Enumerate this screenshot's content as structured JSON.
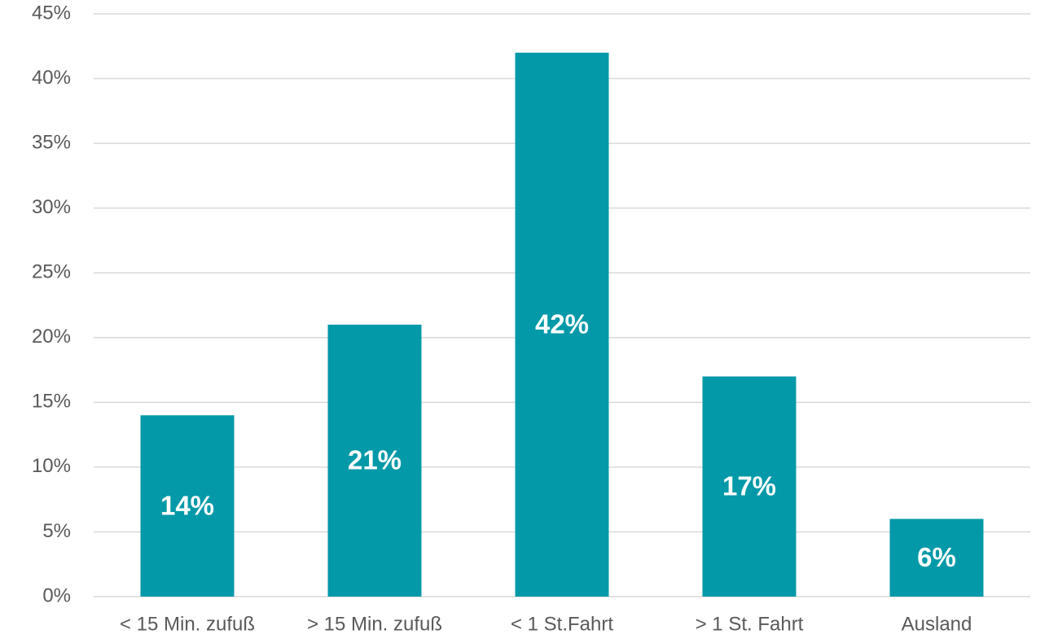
{
  "chart_data": {
    "type": "bar",
    "categories": [
      "< 15 Min. zufuß",
      "> 15 Min. zufuß",
      "< 1 St.Fahrt",
      "> 1 St. Fahrt",
      "Ausland"
    ],
    "values": [
      14,
      21,
      42,
      17,
      6
    ],
    "value_labels": [
      "14%",
      "21%",
      "42%",
      "17%",
      "6%"
    ],
    "color": "#0399a8",
    "ylim": [
      0,
      45
    ],
    "yticks": [
      {
        "value": 0,
        "label": "0%"
      },
      {
        "value": 5,
        "label": "5%"
      },
      {
        "value": 10,
        "label": "10%"
      },
      {
        "value": 15,
        "label": "15%"
      },
      {
        "value": 20,
        "label": "20%"
      },
      {
        "value": 25,
        "label": "25%"
      },
      {
        "value": 30,
        "label": "30%"
      },
      {
        "value": 35,
        "label": "35%"
      },
      {
        "value": 40,
        "label": "40%"
      },
      {
        "value": 45,
        "label": "45%"
      }
    ],
    "grid": true
  }
}
